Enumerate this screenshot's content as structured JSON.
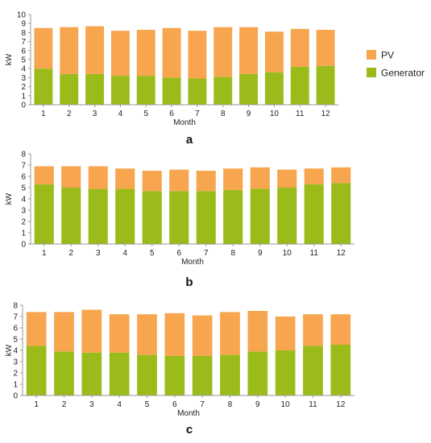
{
  "colors": {
    "pv": "#F7A64F",
    "generator": "#9BBB1A"
  },
  "legend": [
    {
      "name": "PV",
      "color": "#F7A64F"
    },
    {
      "name": "Generator",
      "color": "#9BBB1A"
    }
  ],
  "chart_data": [
    {
      "type": "bar",
      "stacked": true,
      "label": "a",
      "xlabel": "Month",
      "ylabel": "kW",
      "ylim": [
        0,
        10
      ],
      "yticks": [
        0,
        1,
        2,
        3,
        4,
        5,
        6,
        7,
        8,
        9,
        10
      ],
      "categories": [
        "1",
        "2",
        "3",
        "4",
        "5",
        "6",
        "7",
        "8",
        "9",
        "10",
        "11",
        "12"
      ],
      "series": [
        {
          "name": "Generator",
          "values": [
            4.0,
            3.4,
            3.4,
            3.2,
            3.2,
            3.0,
            2.9,
            3.1,
            3.4,
            3.6,
            4.2,
            4.3
          ]
        },
        {
          "name": "PV",
          "values": [
            4.5,
            5.2,
            5.3,
            5.0,
            5.1,
            5.5,
            5.3,
            5.5,
            5.2,
            4.5,
            4.2,
            4.0
          ]
        }
      ],
      "legend_position": "right"
    },
    {
      "type": "bar",
      "stacked": true,
      "label": "b",
      "xlabel": "Month",
      "ylabel": "kW",
      "ylim": [
        0,
        8
      ],
      "yticks": [
        0,
        1,
        2,
        3,
        4,
        5,
        6,
        7,
        8
      ],
      "categories": [
        "1",
        "2",
        "3",
        "4",
        "5",
        "6",
        "7",
        "8",
        "9",
        "10",
        "11",
        "12"
      ],
      "series": [
        {
          "name": "Generator",
          "values": [
            5.3,
            5.0,
            4.9,
            4.9,
            4.7,
            4.7,
            4.7,
            4.8,
            4.9,
            5.0,
            5.3,
            5.4
          ]
        },
        {
          "name": "PV",
          "values": [
            1.6,
            1.9,
            2.0,
            1.8,
            1.8,
            1.9,
            1.8,
            1.9,
            1.9,
            1.6,
            1.4,
            1.4
          ]
        }
      ]
    },
    {
      "type": "bar",
      "stacked": true,
      "label": "c",
      "xlabel": "Month",
      "ylabel": "kW",
      "ylim": [
        0,
        8
      ],
      "yticks": [
        0,
        1,
        2,
        3,
        4,
        5,
        6,
        7,
        8
      ],
      "categories": [
        "1",
        "2",
        "3",
        "4",
        "5",
        "6",
        "7",
        "8",
        "9",
        "10",
        "11",
        "12"
      ],
      "series": [
        {
          "name": "Generator",
          "values": [
            4.4,
            3.9,
            3.8,
            3.8,
            3.6,
            3.5,
            3.5,
            3.6,
            3.9,
            4.0,
            4.4,
            4.5
          ]
        },
        {
          "name": "PV",
          "values": [
            3.0,
            3.5,
            3.8,
            3.4,
            3.6,
            3.8,
            3.6,
            3.8,
            3.6,
            3.0,
            2.8,
            2.7
          ]
        }
      ]
    }
  ]
}
